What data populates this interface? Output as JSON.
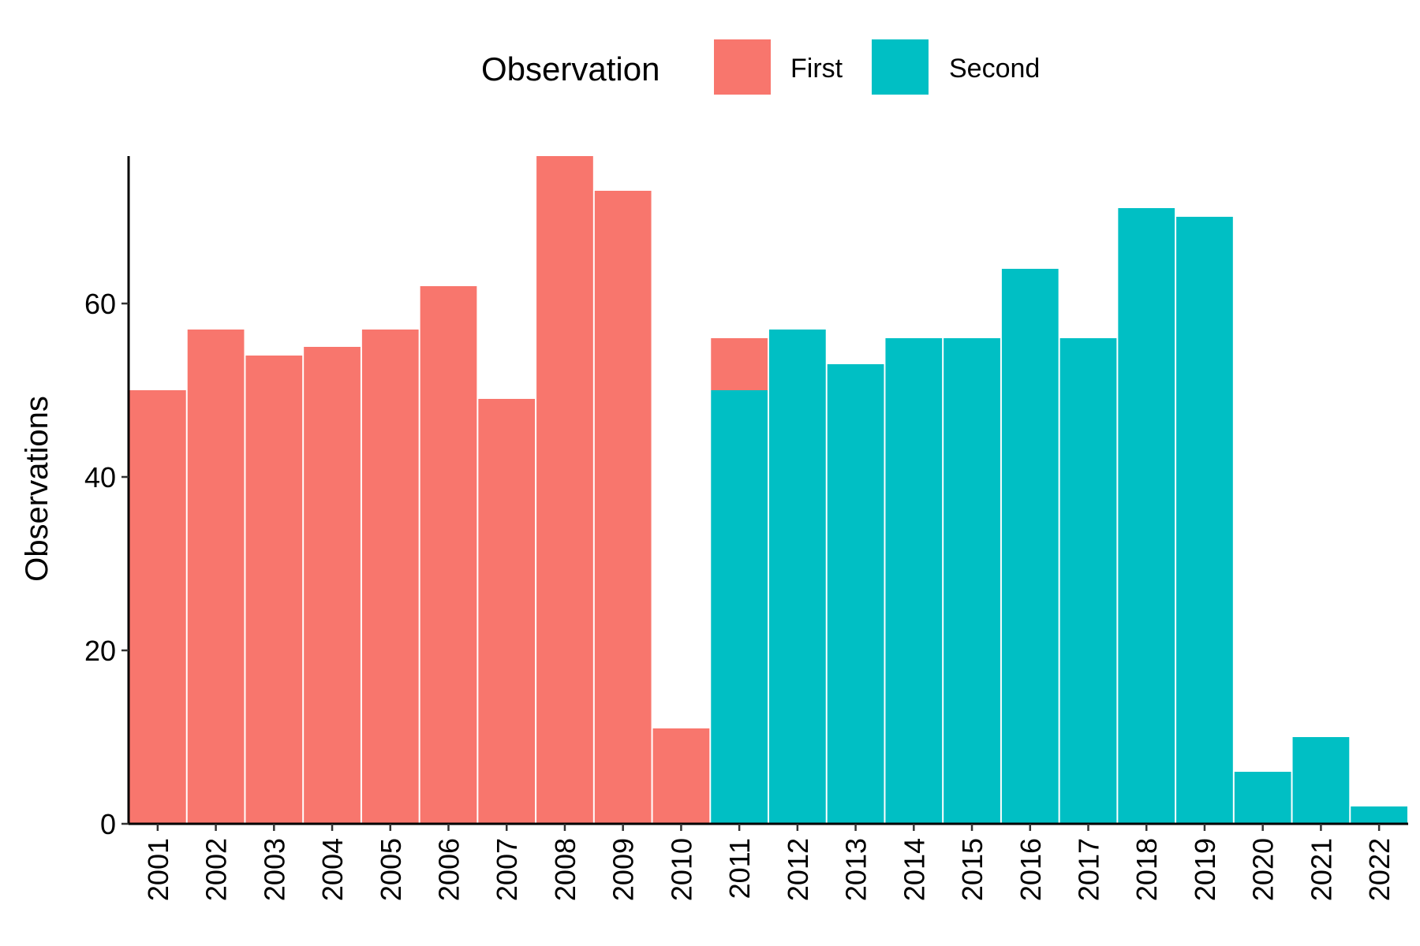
{
  "chart_data": {
    "type": "bar",
    "stacked": true,
    "categories": [
      "2001",
      "2002",
      "2003",
      "2004",
      "2005",
      "2006",
      "2007",
      "2008",
      "2009",
      "2010",
      "2011",
      "2012",
      "2013",
      "2014",
      "2015",
      "2016",
      "2017",
      "2018",
      "2019",
      "2020",
      "2021",
      "2022"
    ],
    "series": [
      {
        "name": "First",
        "color": "#F8766D",
        "values": [
          50,
          57,
          54,
          55,
          57,
          62,
          49,
          77,
          73,
          11,
          6,
          0,
          0,
          0,
          0,
          0,
          0,
          0,
          0,
          0,
          0,
          0
        ]
      },
      {
        "name": "Second",
        "color": "#00BFC4",
        "values": [
          0,
          0,
          0,
          0,
          0,
          0,
          0,
          0,
          0,
          0,
          50,
          57,
          53,
          56,
          56,
          64,
          56,
          71,
          70,
          6,
          10,
          2
        ]
      }
    ],
    "title": "",
    "xlabel": "",
    "ylabel": "Observations",
    "ylim": [
      0,
      77
    ],
    "yticks": [
      0,
      20,
      40,
      60
    ],
    "grid": false,
    "legend": {
      "title": "Observation",
      "position": "top"
    }
  }
}
